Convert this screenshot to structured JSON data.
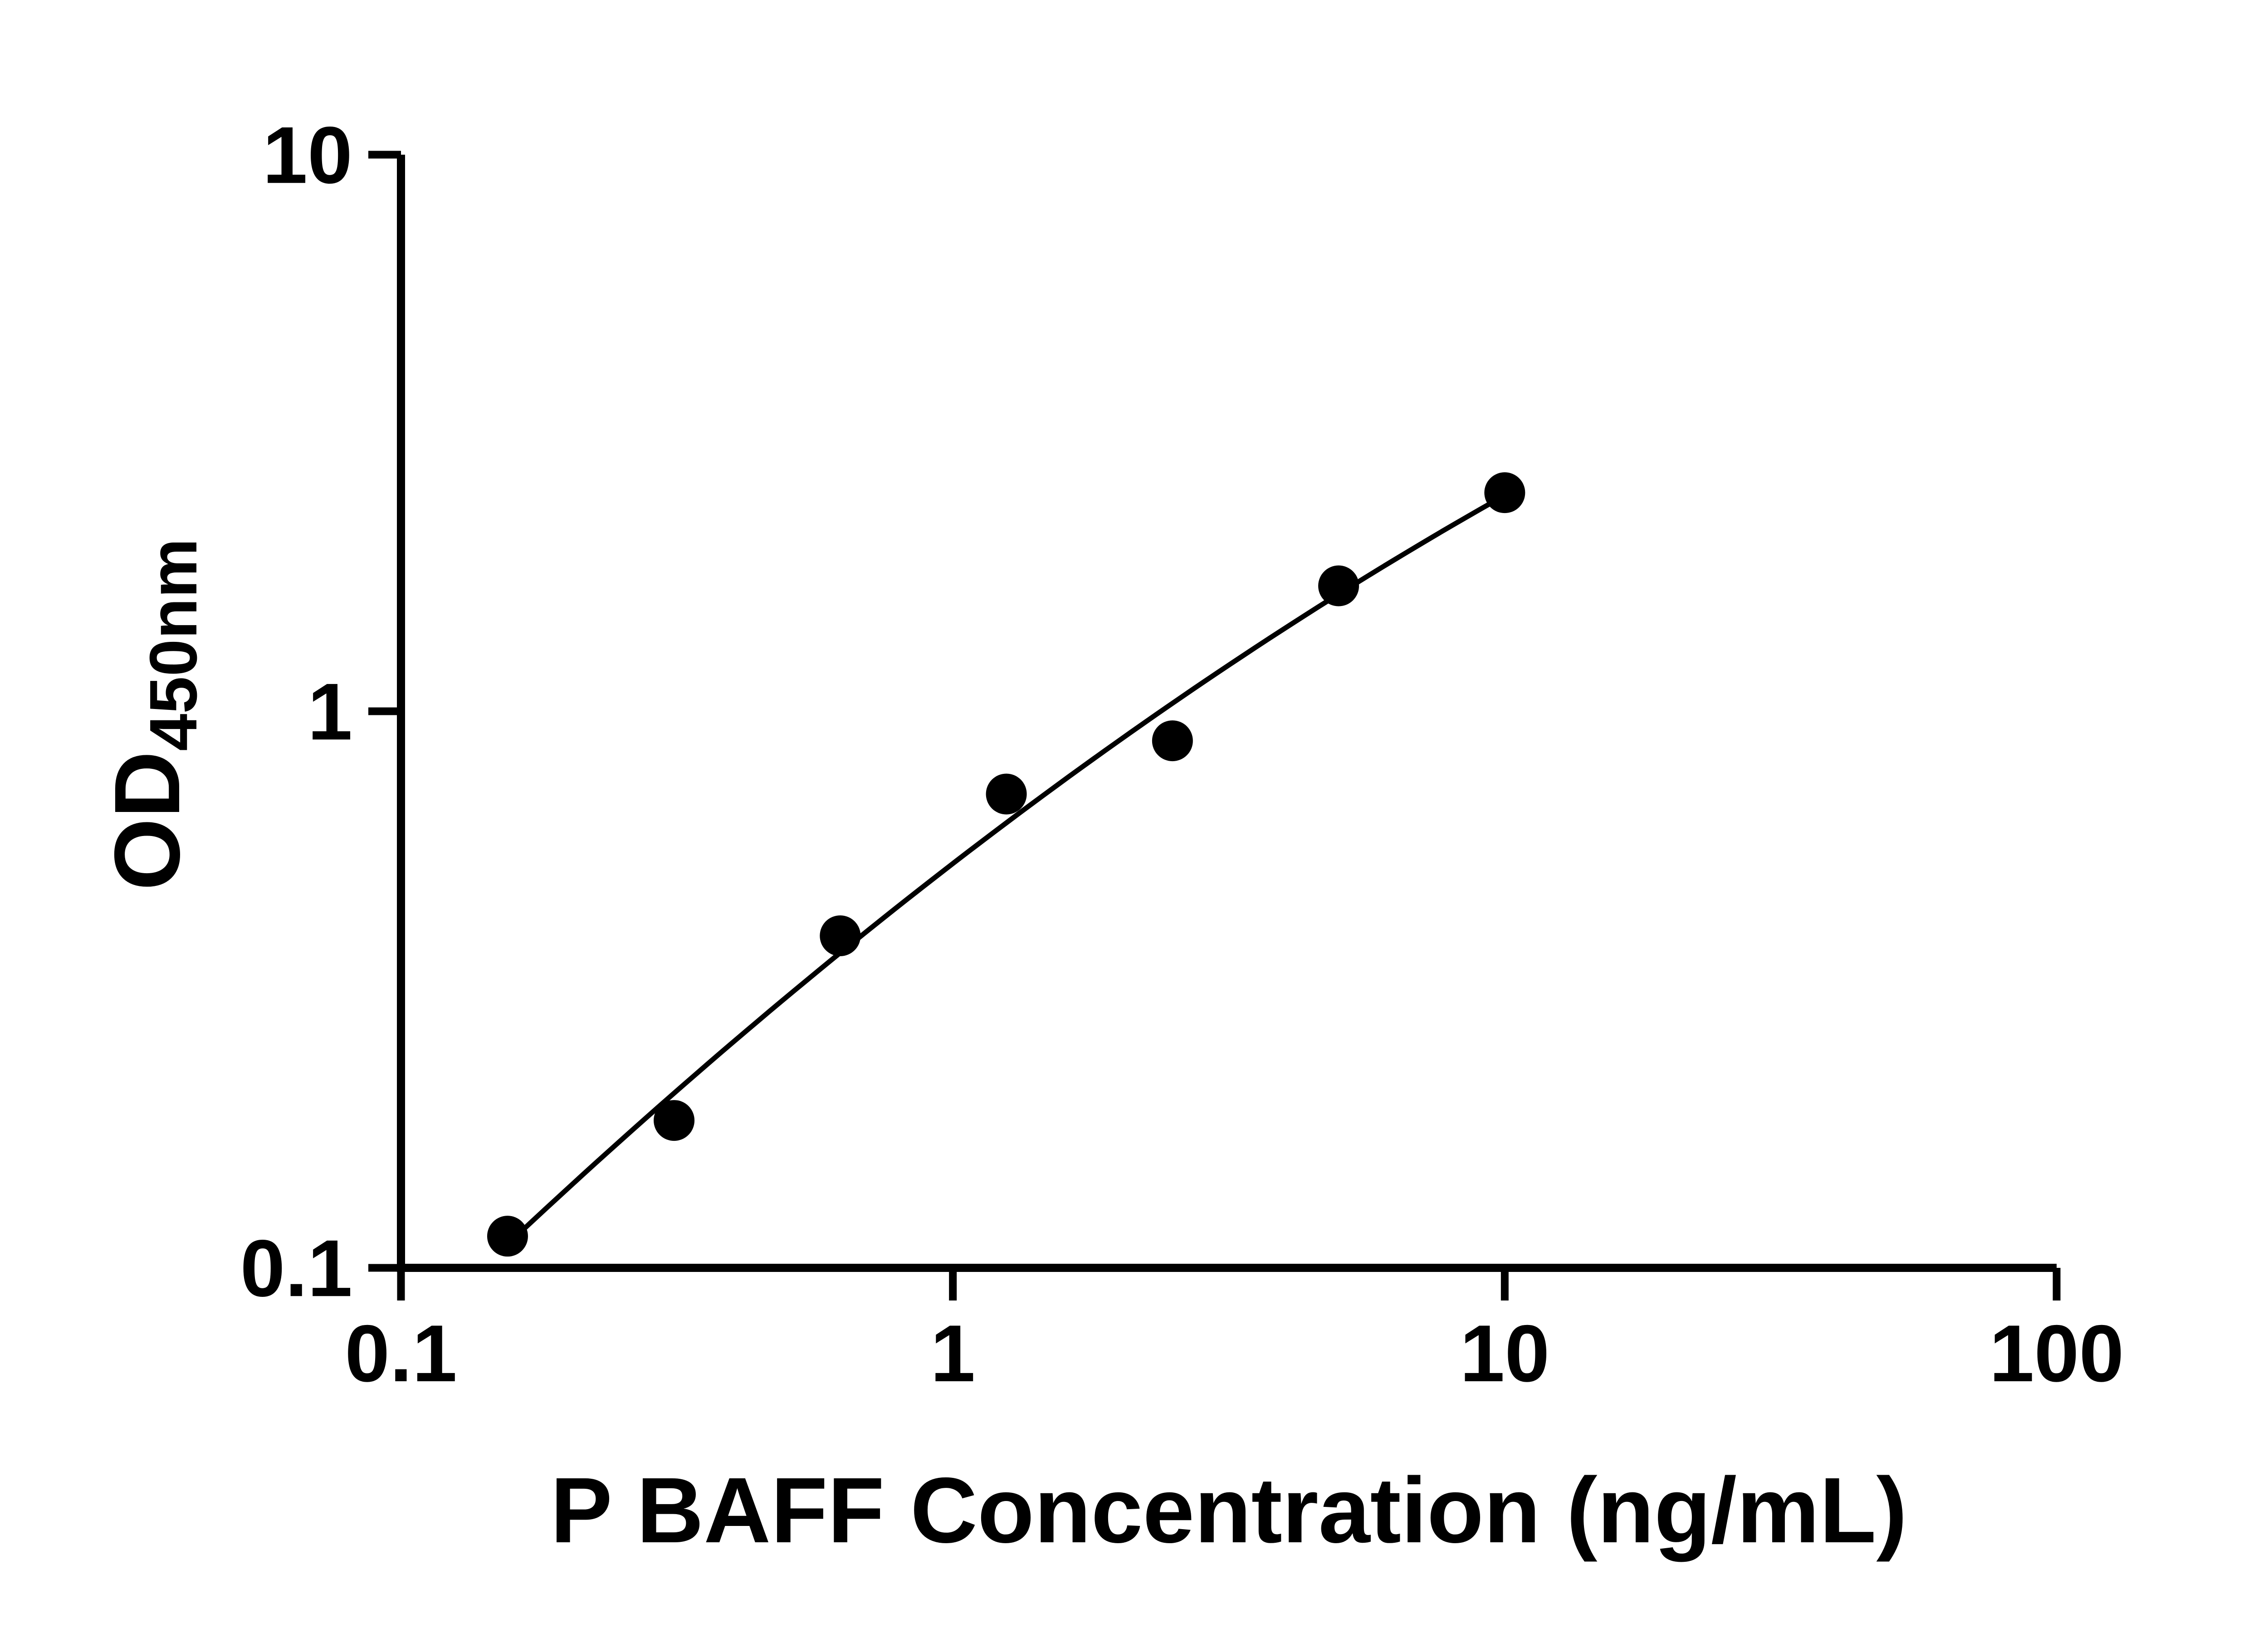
{
  "chart_data": {
    "type": "scatter",
    "title": "",
    "xlabel": "P BAFF Concentration (ng/mL)",
    "ylabel": "OD450nm",
    "ylabel_main": "OD",
    "ylabel_sub": "450nm",
    "x_scale": "log10",
    "y_scale": "log10",
    "xlim": [
      0.1,
      100
    ],
    "ylim": [
      0.1,
      10
    ],
    "x_tick_labels": [
      "0.1",
      "1",
      "10",
      "100"
    ],
    "x_tick_values": [
      0.1,
      1,
      10,
      100
    ],
    "y_tick_labels": [
      "0.1",
      "1",
      "10"
    ],
    "y_tick_values": [
      0.1,
      1,
      10
    ],
    "grid": false,
    "legend": "none",
    "background": "#ffffff",
    "axis_color": "#000000",
    "series": [
      {
        "marker": "filled-circle",
        "marker_color": "#000000",
        "line_color": "#000000",
        "x": [
          0.156,
          0.3125,
          0.625,
          1.25,
          2.5,
          5,
          10
        ],
        "y": [
          0.114,
          0.184,
          0.395,
          0.71,
          0.885,
          1.68,
          2.47
        ]
      }
    ]
  }
}
